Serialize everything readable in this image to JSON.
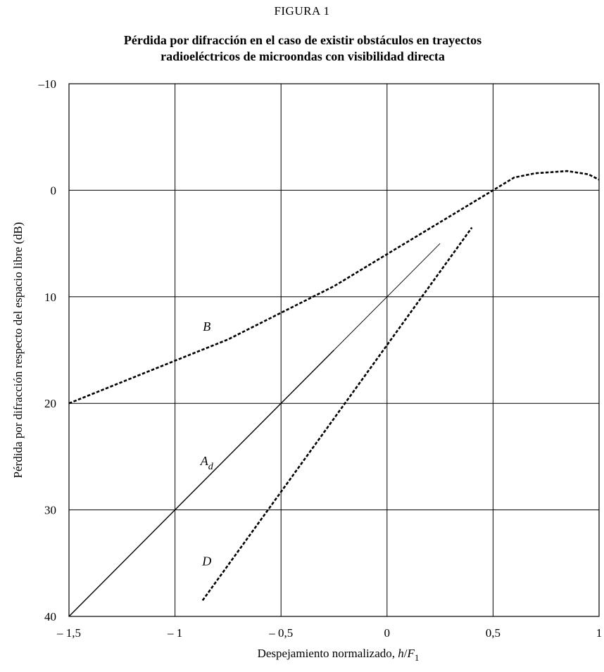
{
  "figure_label": "FIGURA  1",
  "chart_data": {
    "type": "line",
    "title_lines": [
      "Pérdida por difracción en el caso de existir obstáculos en trayectos",
      "radioeléctricos de microondas con visibilidad directa"
    ],
    "xlabel": "Despejamiento normalizado, ",
    "xlabel_var": "h",
    "xlabel_sep": "/",
    "xlabel_var2": "F",
    "xlabel_sub": "1",
    "ylabel": "Pérdida por difracción respecto del espacio libre (dB)",
    "xlim": [
      -1.5,
      1
    ],
    "ylim": [
      40,
      -10
    ],
    "y_inverted": true,
    "grid": true,
    "x_ticks": [
      -1.5,
      -1,
      -0.5,
      0,
      0.5,
      1
    ],
    "x_tick_labels": [
      "– 1,5",
      "– 1",
      "– 0,5",
      "0",
      "0,5",
      "1"
    ],
    "y_ticks": [
      -10,
      0,
      10,
      20,
      30,
      40
    ],
    "y_tick_labels": [
      "–10",
      "0",
      "10",
      "20",
      "30",
      "40"
    ],
    "series": [
      {
        "name": "B",
        "style": "dashed",
        "x": [
          -1.5,
          -1.25,
          -1.0,
          -0.75,
          -0.5,
          -0.25,
          0.0,
          0.25,
          0.5,
          0.6,
          0.7,
          0.85,
          0.95,
          1.0
        ],
        "y": [
          20.0,
          18.0,
          16.0,
          14.0,
          11.5,
          9.0,
          6.0,
          3.0,
          0.0,
          -1.2,
          -1.6,
          -1.8,
          -1.5,
          -1.0
        ]
      },
      {
        "name": "A",
        "subscript": "d",
        "style": "solid",
        "x": [
          -1.5,
          -0.25
        ],
        "y": [
          40.0,
          15.0
        ]
      },
      {
        "name": "A (extension)",
        "style": "thin",
        "x": [
          -0.25,
          0.25
        ],
        "y": [
          15.0,
          5.0
        ]
      },
      {
        "name": "D",
        "style": "dashed",
        "x": [
          -0.87,
          0.4
        ],
        "y": [
          38.5,
          3.5
        ]
      }
    ],
    "annotations": [
      {
        "text": "B",
        "x": -0.85,
        "y": 13.2
      },
      {
        "text": "A",
        "sub": "d",
        "x": -0.85,
        "y": 25.8
      },
      {
        "text": "D",
        "x": -0.85,
        "y": 35.2
      }
    ]
  }
}
